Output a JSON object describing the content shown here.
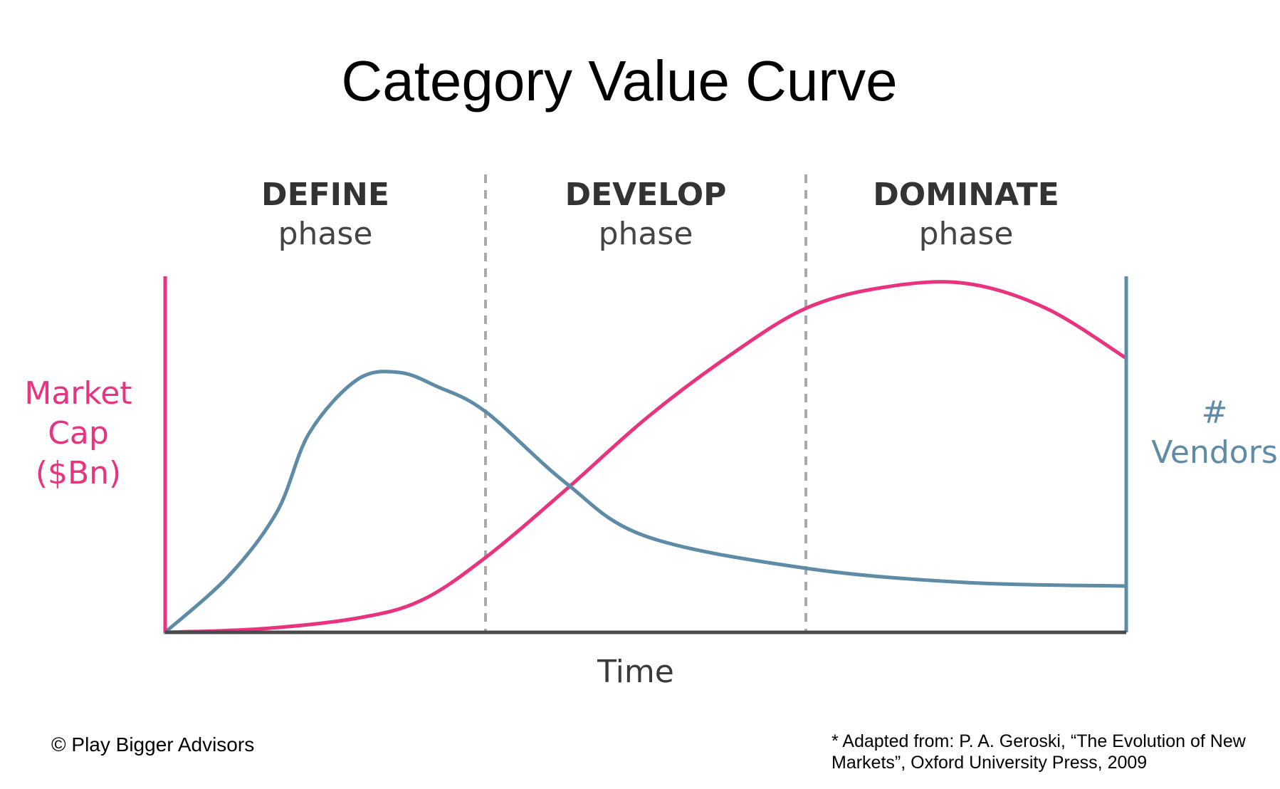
{
  "title": "Category Value Curve",
  "chart_data": {
    "type": "line",
    "phases": [
      {
        "name": "DEFINE",
        "sub": "phase"
      },
      {
        "name": "DEVELOP",
        "sub": "phase"
      },
      {
        "name": "DOMINATE",
        "sub": "phase"
      }
    ],
    "xlabel": "Time",
    "ylabel_left": [
      "Market",
      "Cap",
      "($Bn)"
    ],
    "ylabel_right": [
      "#",
      "Vendors"
    ],
    "xlim": [
      0,
      3
    ],
    "ylim": [
      0,
      1
    ],
    "grid": false,
    "series": [
      {
        "axis": "left",
        "color": "#E8337E",
        "x": [
          0,
          0.3,
          0.6,
          0.8,
          1.0,
          1.25,
          1.5,
          1.75,
          2.0,
          2.25,
          2.5,
          2.75,
          3.0
        ],
        "y": [
          0,
          0.01,
          0.04,
          0.09,
          0.21,
          0.4,
          0.6,
          0.77,
          0.91,
          0.97,
          0.98,
          0.91,
          0.77
        ]
      },
      {
        "axis": "right",
        "color": "#5E8BA5",
        "x": [
          0,
          0.2,
          0.35,
          0.45,
          0.6,
          0.73,
          0.85,
          1.0,
          1.25,
          1.5,
          2.0,
          2.5,
          3.0
        ],
        "y": [
          0,
          0.16,
          0.34,
          0.56,
          0.71,
          0.73,
          0.69,
          0.62,
          0.42,
          0.27,
          0.18,
          0.14,
          0.13
        ]
      }
    ]
  },
  "footer": {
    "copyright": "© Play Bigger Advisors",
    "source": "* Adapted from: P. A. Geroski, “The Evolution of New Markets”, Oxford University Press, 2009"
  }
}
